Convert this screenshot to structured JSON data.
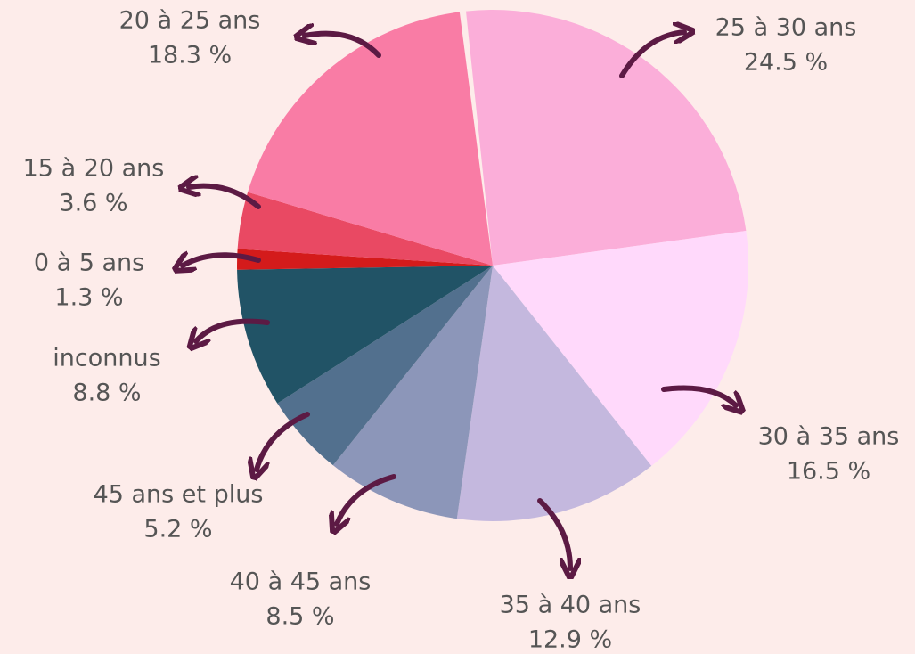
{
  "chart_data": {
    "type": "pie",
    "categories": [
      "25 à 30 ans",
      "30 à 35 ans",
      "35 à 40 ans",
      "40 à 45 ans",
      "45 ans et plus",
      "inconnus",
      "0 à 5 ans",
      "15 à 20 ans",
      "20 à 25 ans"
    ],
    "values": [
      24.5,
      16.5,
      12.9,
      8.5,
      5.2,
      8.8,
      1.3,
      3.6,
      18.3
    ],
    "value_labels": [
      "24.5 %",
      "16.5 %",
      "12.9 %",
      "8.5 %",
      "5.2 %",
      "8.8 %",
      "1.3 %",
      "3.6 %",
      "18.3 %"
    ],
    "colors": [
      "#fbaed9",
      "#ffd9fb",
      "#c4b8de",
      "#8c96b9",
      "#52708e",
      "#215366",
      "#d41b1b",
      "#e94963",
      "#f97ca5"
    ]
  }
}
